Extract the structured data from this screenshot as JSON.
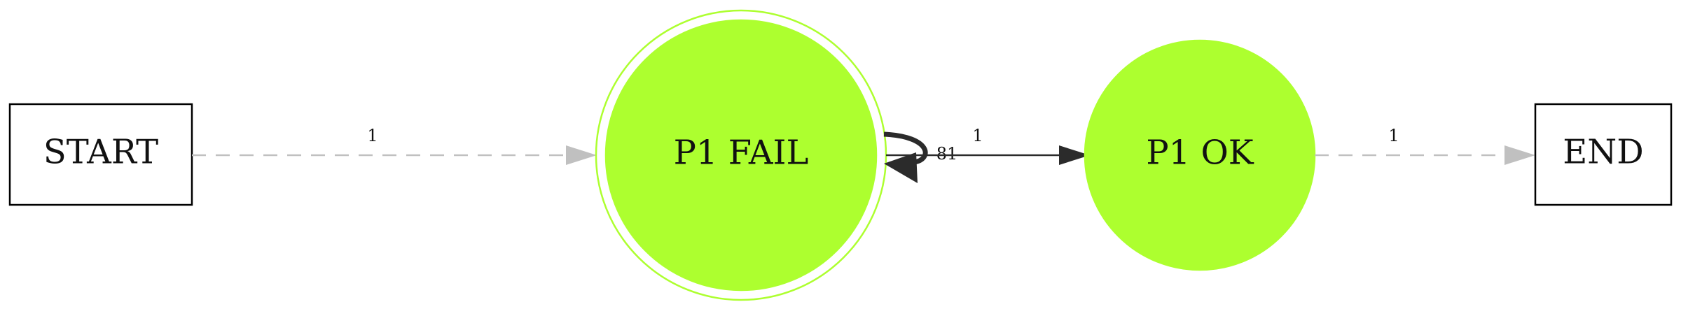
{
  "diagram": {
    "nodes": {
      "start": {
        "label": "START"
      },
      "p1_fail": {
        "label": "P1 FAIL"
      },
      "p1_ok": {
        "label": "P1 OK"
      },
      "end": {
        "label": "END"
      }
    },
    "edges": {
      "start_to_fail": {
        "label": "1"
      },
      "fail_self_loop": {
        "label": "81"
      },
      "fail_to_ok": {
        "label": "1"
      },
      "ok_to_end": {
        "label": "1"
      }
    },
    "colors": {
      "node_fill": "#adff2f",
      "edge_dark": "#2b2b2b",
      "edge_gray": "#c0c0c0",
      "box_stroke": "#000000"
    }
  }
}
